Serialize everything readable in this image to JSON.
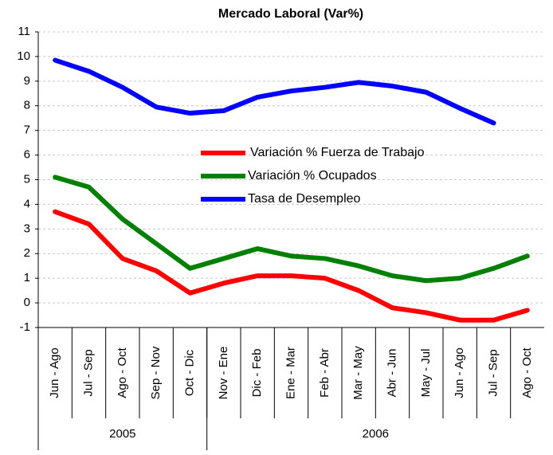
{
  "chart_data": {
    "type": "line",
    "title": "Mercado Laboral (Var%)",
    "categories": [
      "Jun - Ago",
      "Jul - Sep",
      "Ago - Oct",
      "Sep - Nov",
      "Oct - Dic",
      "Nov - Ene",
      "Dic - Feb",
      "Ene - Mar",
      "Feb - Abr",
      "Mar - May",
      "Abr - Jun",
      "May - Jul",
      "Jun - Ago",
      "Jul - Sep",
      "Ago - Oct"
    ],
    "x_groups": [
      {
        "label": "2005",
        "count": 5
      },
      {
        "label": "2006",
        "count": 10
      }
    ],
    "series": [
      {
        "name": "Variación % Fuerza de Trabajo",
        "color": "#ff0000",
        "values": [
          3.7,
          3.2,
          1.8,
          1.3,
          0.4,
          0.8,
          1.1,
          1.1,
          1.0,
          0.5,
          -0.2,
          -0.4,
          -0.7,
          -0.7,
          -0.3
        ]
      },
      {
        "name": "Variación % Ocupados",
        "color": "#008000",
        "values": [
          5.1,
          4.7,
          3.4,
          2.4,
          1.4,
          1.8,
          2.2,
          1.9,
          1.8,
          1.5,
          1.1,
          0.9,
          1.0,
          1.4,
          1.9
        ]
      },
      {
        "name": "Tasa de Desempleo",
        "color": "#0000ff",
        "values": [
          9.85,
          9.4,
          8.75,
          7.95,
          7.7,
          7.8,
          8.35,
          8.6,
          8.75,
          8.95,
          8.8,
          8.55,
          7.9,
          7.3,
          null
        ]
      }
    ],
    "ylim": [
      -1,
      11
    ],
    "yticks": [
      -1,
      0,
      1,
      2,
      3,
      4,
      5,
      6,
      7,
      8,
      9,
      10,
      11
    ],
    "grid": true
  }
}
